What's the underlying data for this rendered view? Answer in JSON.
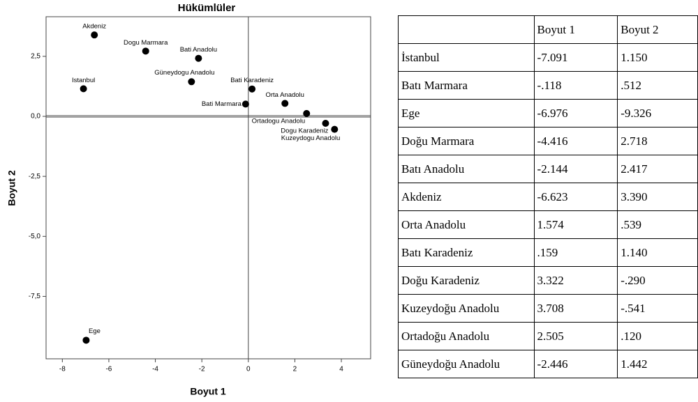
{
  "chart_data": {
    "type": "scatter",
    "title": "Hükümlüler",
    "xlabel": "Boyut 1",
    "ylabel": "Boyut 2",
    "color": "#000000",
    "labels": [
      "Istanbul",
      "Bati Marmara",
      "Ege",
      "Dogu Marmara",
      "Bati Anadolu",
      "Akdeniz",
      "Orta Anadolu",
      "Bati Karadeniz",
      "Dogu Karadeniz",
      "Kuzeydogu Anadolu",
      "Ortadogu Anadolu",
      "Güneydogu Anadolu"
    ],
    "x": [
      -7.091,
      -0.118,
      -6.976,
      -4.416,
      -2.144,
      -6.623,
      1.574,
      0.159,
      3.322,
      3.708,
      2.505,
      -2.446
    ],
    "y": [
      1.15,
      0.512,
      -9.326,
      2.718,
      2.417,
      3.39,
      0.539,
      1.14,
      -0.29,
      -0.541,
      0.12,
      1.442
    ],
    "xlim": [
      -8.7,
      5.26
    ],
    "xticks": [
      -8,
      -6,
      -4,
      -2,
      0,
      2,
      4
    ],
    "ylim": [
      -10.1,
      4.15
    ],
    "yticks": [
      {
        "value": 2.5,
        "label": "2,5"
      },
      {
        "value": 0,
        "label": "0,0"
      },
      {
        "value": -2.5,
        "label": "-2,5"
      },
      {
        "value": -5,
        "label": "-5,0"
      },
      {
        "value": -7.5,
        "label": "-7,5"
      }
    ]
  },
  "table": {
    "header": [
      "Boyut 1",
      "Boyut 2"
    ],
    "rows": [
      [
        "İstanbul",
        "-7.091",
        "1.150"
      ],
      [
        "Batı Marmara",
        "-.118",
        ".512"
      ],
      [
        "Ege",
        "-6.976",
        "-9.326"
      ],
      [
        "Doğu Marmara",
        "-4.416",
        "2.718"
      ],
      [
        "Batı Anadolu",
        "-2.144",
        "2.417"
      ],
      [
        "Akdeniz",
        "-6.623",
        "3.390"
      ],
      [
        "Orta Anadolu",
        "1.574",
        ".539"
      ],
      [
        "Batı Karadeniz",
        ".159",
        "1.140"
      ],
      [
        "Doğu Karadeniz",
        "3.322",
        "-.290"
      ],
      [
        "Kuzeydoğu Anadolu",
        "3.708",
        "-.541"
      ],
      [
        "Ortadoğu Anadolu",
        "2.505",
        ".120"
      ],
      [
        "Güneydoğu Anadolu",
        "-2.446",
        "1.442"
      ]
    ]
  }
}
